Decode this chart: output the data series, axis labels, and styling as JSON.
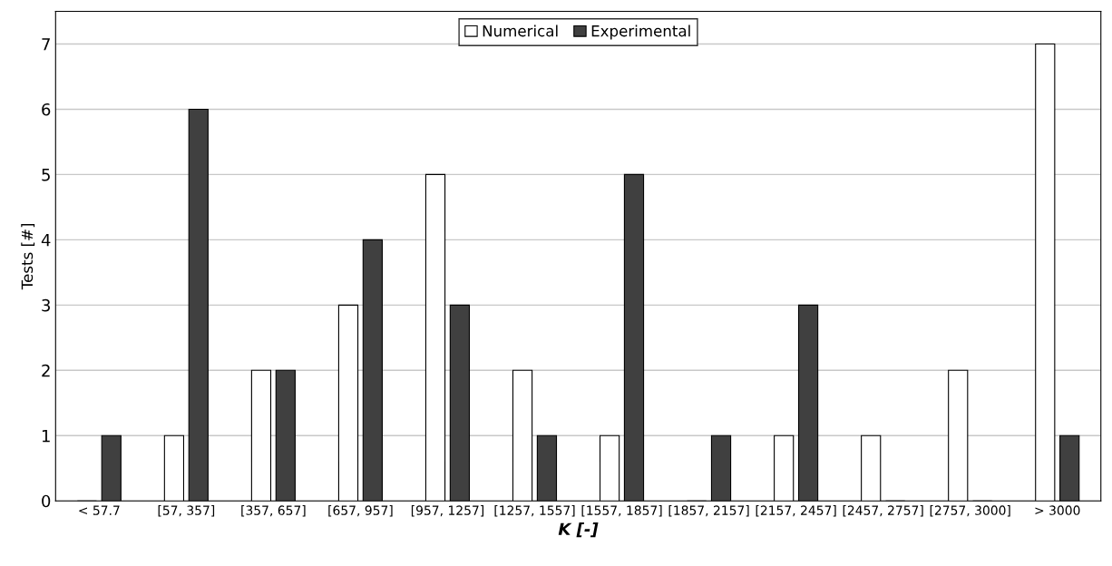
{
  "chart_data": {
    "type": "bar",
    "xlabel": "K [-]",
    "ylabel": "Tests [#]",
    "categories": [
      "< 57.7",
      "[57, 357]",
      "[357, 657]",
      "[657, 957]",
      "[957, 1257]",
      "[1257, 1557]",
      "[1557, 1857]",
      "[1857, 2157]",
      "[2157, 2457]",
      "[2457, 2757]",
      "[2757, 3000]",
      "> 3000"
    ],
    "series": [
      {
        "name": "Numerical",
        "color": "#ffffff",
        "values": [
          0,
          1,
          2,
          3,
          5,
          2,
          1,
          0,
          1,
          1,
          2,
          7
        ]
      },
      {
        "name": "Experimental",
        "color": "#404040",
        "values": [
          1,
          6,
          2,
          4,
          3,
          1,
          5,
          1,
          3,
          0,
          0,
          1
        ]
      }
    ],
    "ylim": [
      0,
      7.5
    ],
    "yticks": [
      0,
      1,
      2,
      3,
      4,
      5,
      6,
      7
    ],
    "grid": "y",
    "legend": "top"
  }
}
